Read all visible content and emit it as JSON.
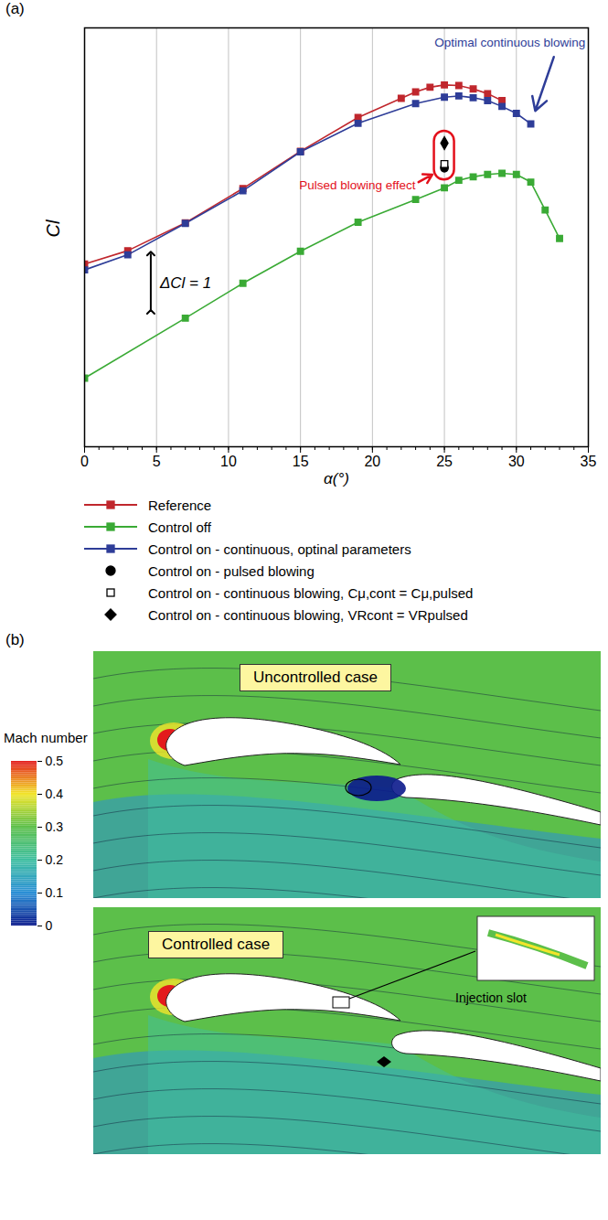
{
  "chart_data": [
    {
      "type": "line",
      "panel": "(a)",
      "xlabel": "α(°)",
      "ylabel": "Cl",
      "xlim": [
        0,
        35
      ],
      "xticks": [
        0,
        5,
        10,
        15,
        20,
        25,
        30,
        35
      ],
      "ylim": [
        0,
        7.2
      ],
      "yticks": [],
      "tick_labels": "x",
      "grid": true,
      "legend": "bottom",
      "series": [
        {
          "name": "Reference",
          "color": "#c0272d",
          "marker": "square",
          "line_style": "solid",
          "x": [
            0,
            3,
            7,
            11,
            15,
            19,
            22,
            23,
            24,
            25,
            26,
            27,
            28,
            29
          ],
          "values": [
            3.14,
            3.37,
            3.85,
            4.44,
            5.08,
            5.66,
            5.99,
            6.1,
            6.18,
            6.22,
            6.21,
            6.15,
            6.07,
            5.95
          ]
        },
        {
          "name": "Control off",
          "color": "#3aaa35",
          "marker": "square",
          "line_style": "solid",
          "x": [
            0,
            7,
            11,
            15,
            19,
            23,
            25,
            26,
            27,
            28,
            29,
            30,
            31,
            32,
            33
          ],
          "values": [
            1.18,
            2.21,
            2.81,
            3.36,
            3.86,
            4.25,
            4.45,
            4.58,
            4.64,
            4.68,
            4.7,
            4.68,
            4.55,
            4.07,
            3.58
          ]
        },
        {
          "name": "Control on - continuous, optinal parameters",
          "color": "#2e3d98",
          "marker": "square",
          "line_style": "solid",
          "x": [
            0,
            3,
            7,
            11,
            15,
            19,
            23,
            25,
            26,
            27,
            28,
            29,
            30,
            31
          ],
          "values": [
            3.04,
            3.3,
            3.84,
            4.4,
            5.07,
            5.56,
            5.9,
            6.01,
            6.03,
            6.0,
            5.95,
            5.85,
            5.73,
            5.55
          ]
        },
        {
          "name": "Control on - pulsed blowing",
          "type": "scatter",
          "color": "#000000",
          "marker": "circle",
          "x": [
            25
          ],
          "values": [
            4.79
          ]
        },
        {
          "name": "Control on - continuous blowing, Cμ,cont = Cμ,pulsed",
          "type": "scatter",
          "color": "#000000",
          "marker": "square_open",
          "x": [
            25
          ],
          "values": [
            4.86
          ]
        },
        {
          "name": "Control on - continuous blowing, VRcont = VRpulsed",
          "type": "scatter",
          "color": "#000000",
          "marker": "diamond",
          "x": [
            25
          ],
          "values": [
            5.22
          ]
        }
      ],
      "annotations": [
        {
          "text": "Optimal continuous blowing",
          "color": "#2e3d98",
          "x": 34.8,
          "y": 6.95,
          "arrow_from": [
            32.6,
            6.7
          ],
          "arrow_to": [
            31,
            5.55
          ]
        },
        {
          "text": "Pulsed blowing effect",
          "color": "#e3101b",
          "x": 23.0,
          "y": 4.5,
          "arrow_from": [
            23.2,
            4.55
          ],
          "arrow_to": [
            25,
            4.79
          ]
        },
        {
          "text": "ΔCl = 1",
          "color": "#000000",
          "x": 4.6,
          "y_from": 2.32,
          "y_to": 3.32
        }
      ]
    },
    {
      "type": "contour",
      "panel": "(b)",
      "colorbar": {
        "title": "Mach number",
        "range": [
          0,
          0.5
        ],
        "ticks": [
          0,
          0.1,
          0.2,
          0.3,
          0.4,
          0.5
        ],
        "colors": [
          "#0b1a8c",
          "#2a8fd6",
          "#3fbfa0",
          "#5cbf4a",
          "#f2e52a",
          "#e31a1c"
        ]
      },
      "panels": [
        {
          "title": "Uncontrolled case"
        },
        {
          "title": "Controlled case",
          "inset_label": "Injection slot"
        }
      ]
    }
  ]
}
